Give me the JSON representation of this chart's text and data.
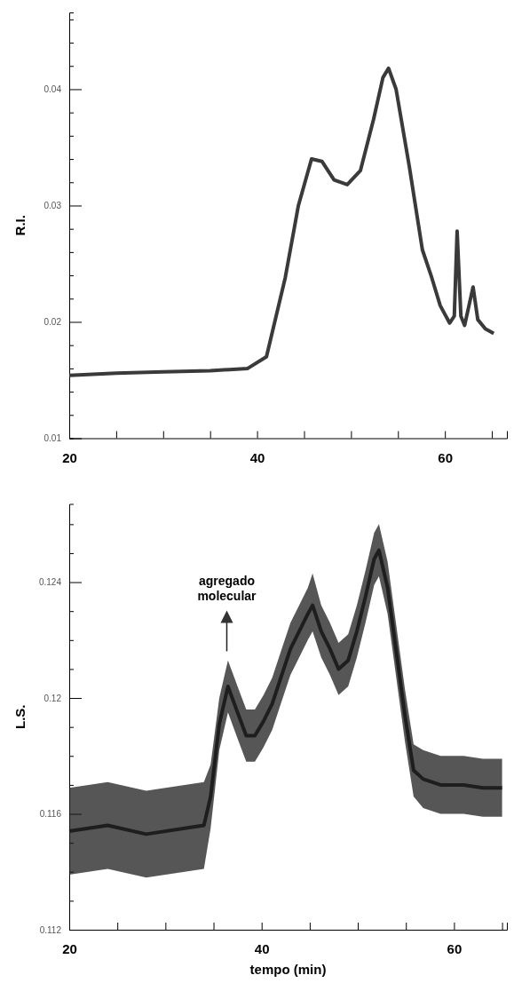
{
  "chart_data": [
    {
      "type": "line",
      "ylabel": "R.I.",
      "xlim": [
        20,
        66.6
      ],
      "ylim": [
        0.01,
        0.0466
      ],
      "xticks": [
        20,
        {
          "value": 25,
          "label": null
        },
        {
          "value": 30,
          "label": null
        },
        {
          "value": 35,
          "label": null
        },
        40,
        {
          "value": 45,
          "label": null
        },
        {
          "value": 50,
          "label": null
        },
        {
          "value": 55,
          "label": null
        },
        60,
        {
          "value": 65,
          "label": null
        }
      ],
      "yticks": [
        0.01,
        {
          "value": 0.012,
          "label": null
        },
        {
          "value": 0.014,
          "label": null
        },
        {
          "value": 0.016,
          "label": null
        },
        {
          "value": 0.018,
          "label": null
        },
        0.02,
        {
          "value": 0.022,
          "label": null
        },
        {
          "value": 0.024,
          "label": null
        },
        {
          "value": 0.026,
          "label": null
        },
        {
          "value": 0.028,
          "label": null
        },
        0.03,
        {
          "value": 0.032,
          "label": null
        },
        {
          "value": 0.034,
          "label": null
        },
        {
          "value": 0.036,
          "label": null
        },
        {
          "value": 0.038,
          "label": null
        },
        0.04,
        {
          "value": 0.042,
          "label": null
        },
        {
          "value": 0.044,
          "label": null
        },
        {
          "value": 0.046,
          "label": null
        }
      ],
      "grid": false,
      "marker": "none",
      "line_style": "solid",
      "series": [
        {
          "color": "#3a3a3a",
          "x": [
            20,
            25,
            30,
            35,
            39,
            41,
            43,
            44.4,
            45.8,
            46.9,
            48.2,
            49.6,
            51,
            52.4,
            53.4,
            54,
            54.8,
            56.2,
            57.6,
            58.6,
            59.5,
            60.5,
            61,
            61.3,
            61.7,
            62.1,
            63,
            63.5,
            64.3,
            65.2
          ],
          "values": [
            0.0154,
            0.0156,
            0.0157,
            0.0158,
            0.016,
            0.017,
            0.0238,
            0.03,
            0.034,
            0.0338,
            0.0322,
            0.0318,
            0.033,
            0.0374,
            0.041,
            0.0418,
            0.04,
            0.0334,
            0.0262,
            0.0238,
            0.0214,
            0.0199,
            0.0205,
            0.0278,
            0.0205,
            0.0197,
            0.023,
            0.0202,
            0.0194,
            0.019
          ]
        }
      ]
    },
    {
      "type": "line",
      "xlabel": "tempo (min)",
      "ylabel": "L.S.",
      "xlim": [
        20,
        65.5
      ],
      "ylim": [
        0.112,
        0.1267
      ],
      "xticks": [
        20,
        {
          "value": 25,
          "label": null
        },
        {
          "value": 30,
          "label": null
        },
        {
          "value": 35,
          "label": null
        },
        40,
        {
          "value": 45,
          "label": null
        },
        {
          "value": 50,
          "label": null
        },
        {
          "value": 55,
          "label": null
        },
        60,
        {
          "value": 65,
          "label": null
        }
      ],
      "yticks": [
        0.112,
        {
          "value": 0.113,
          "label": null
        },
        {
          "value": 0.114,
          "label": null
        },
        {
          "value": 0.115,
          "label": null
        },
        0.116,
        {
          "value": 0.117,
          "label": null
        },
        {
          "value": 0.118,
          "label": null
        },
        {
          "value": 0.119,
          "label": null
        },
        0.12,
        {
          "value": 0.121,
          "label": null
        },
        {
          "value": 0.122,
          "label": null
        },
        {
          "value": 0.123,
          "label": null
        },
        0.124,
        {
          "value": 0.125,
          "label": null
        },
        {
          "value": 0.126,
          "label": null
        }
      ],
      "grid": false,
      "marker": "none",
      "line_style": "solid",
      "annotations": [
        "agregado\nmolecular"
      ],
      "series": [
        {
          "color": "#1e1e1e",
          "x": [
            20,
            24,
            28,
            32,
            34,
            34.7,
            35.6,
            36.5,
            37.5,
            38.4,
            39.3,
            40.2,
            41.1,
            42,
            43,
            43.9,
            44.8,
            45.3,
            46.2,
            47.1,
            48,
            49,
            49.9,
            50.8,
            51.7,
            52.2,
            53.1,
            54,
            54.9,
            55.8,
            56.8,
            58.6,
            61,
            63,
            65
          ],
          "values": [
            0.1154,
            0.1156,
            0.1153,
            0.1155,
            0.1156,
            0.1166,
            0.1191,
            0.1204,
            0.1195,
            0.1187,
            0.1187,
            0.1192,
            0.1198,
            0.1207,
            0.1217,
            0.1223,
            0.1229,
            0.1232,
            0.1223,
            0.1217,
            0.121,
            0.1213,
            0.1223,
            0.1235,
            0.1248,
            0.1251,
            0.1238,
            0.1216,
            0.1194,
            0.1175,
            0.1172,
            0.117,
            0.117,
            0.1169,
            0.1169
          ],
          "lower": [
            0.1139,
            0.1141,
            0.1138,
            0.114,
            0.1141,
            0.1155,
            0.1182,
            0.1195,
            0.1186,
            0.1178,
            0.1178,
            0.1183,
            0.1189,
            0.1198,
            0.1208,
            0.1214,
            0.122,
            0.1223,
            0.1214,
            0.1208,
            0.1201,
            0.1204,
            0.1214,
            0.1226,
            0.1239,
            0.1242,
            0.1229,
            0.1207,
            0.1185,
            0.1166,
            0.1162,
            0.116,
            0.116,
            0.1159,
            0.1159
          ],
          "upper": [
            0.1169,
            0.1171,
            0.1168,
            0.117,
            0.1171,
            0.1177,
            0.12,
            0.1213,
            0.1204,
            0.1196,
            0.1196,
            0.1201,
            0.1207,
            0.1216,
            0.1226,
            0.1232,
            0.1238,
            0.1243,
            0.1232,
            0.1226,
            0.1219,
            0.1222,
            0.1232,
            0.1244,
            0.1257,
            0.126,
            0.1247,
            0.1225,
            0.1203,
            0.1184,
            0.1182,
            0.118,
            0.118,
            0.1179,
            0.1179
          ]
        }
      ]
    }
  ]
}
